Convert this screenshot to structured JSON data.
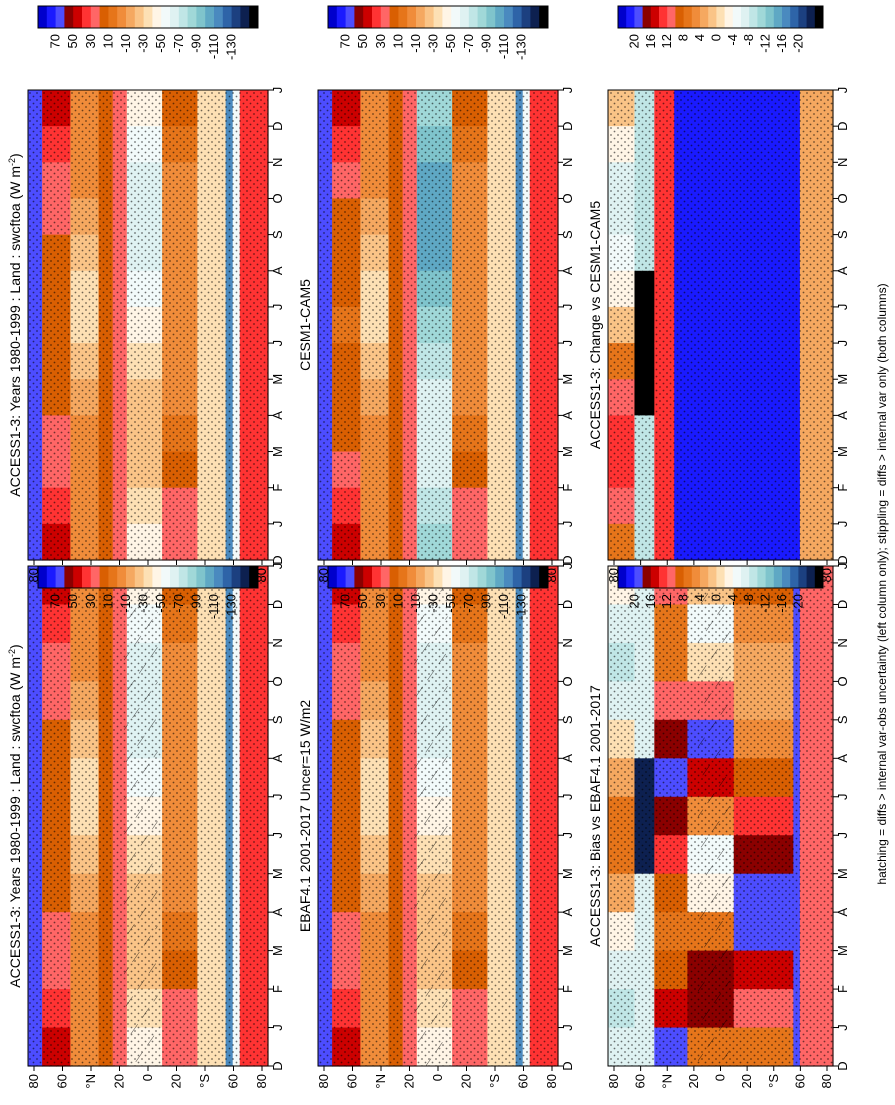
{
  "figure": {
    "footnote": "hatching = diffs > internal var-obs uncertainty (left column only); stippling = diffs > internal var only (both columns)"
  },
  "colorbars": {
    "absolute": {
      "labels": [
        "70",
        "50",
        "30",
        "10",
        "-10",
        "-30",
        "-50",
        "-70",
        "-90",
        "-110",
        "-130"
      ],
      "colors": [
        "#0000cc",
        "#1a1aff",
        "#4d4dff",
        "#8b0000",
        "#cc0000",
        "#ff3333",
        "#ff6666",
        "#d95f02",
        "#e6751a",
        "#f08c3a",
        "#f5a860",
        "#fac487",
        "#fde0b4",
        "#fff5e6",
        "#f2fafa",
        "#dff2f2",
        "#c0e6e6",
        "#a0d8d8",
        "#7fc4cc",
        "#5fa8c4",
        "#4a8abf",
        "#2e64a8",
        "#1c4080",
        "#0d2050",
        "#000000"
      ]
    },
    "difference": {
      "labels": [
        "20",
        "16",
        "12",
        "8",
        "4",
        "0",
        "-4",
        "-8",
        "-12",
        "-16",
        "-20"
      ],
      "colors": [
        "#0000cc",
        "#1a1aff",
        "#4d4dff",
        "#8b0000",
        "#cc0000",
        "#ff3333",
        "#ff6666",
        "#d95f02",
        "#e6751a",
        "#f08c3a",
        "#f5a860",
        "#fac487",
        "#fde0b4",
        "#fff5e6",
        "#f2fafa",
        "#dff2f2",
        "#c0e6e6",
        "#a0d8d8",
        "#7fc4cc",
        "#5fa8c4",
        "#4a8abf",
        "#2e64a8",
        "#1c4080",
        "#0d2050",
        "#000000"
      ]
    }
  },
  "chart_data": [
    {
      "id": "access-historical-left",
      "type": "heatmap",
      "title": "ACCESS1-3: Years 1980-1999 : Land : swcftoa (W m",
      "title_superscript": "-2",
      "title_close": ")",
      "x": [
        "D",
        "J",
        "F",
        "M",
        "A",
        "M",
        "J",
        "J",
        "A",
        "S",
        "O",
        "N",
        "D",
        "J"
      ],
      "y": [
        "80",
        "60",
        "°N",
        "20",
        "0",
        "20",
        "°S",
        "60",
        "80"
      ],
      "colorbar": "absolute",
      "hatching": true,
      "stippling": true,
      "pattern": "absolute-access"
    },
    {
      "id": "access-historical-right",
      "type": "heatmap",
      "title": "ACCESS1-3: Years 1980-1999 : Land : swcftoa (W m",
      "title_superscript": "-2",
      "title_close": ")",
      "x": [
        "D",
        "J",
        "F",
        "M",
        "A",
        "M",
        "J",
        "J",
        "A",
        "S",
        "O",
        "N",
        "D",
        "J"
      ],
      "y": [
        "80",
        "60",
        "°N",
        "20",
        "0",
        "20",
        "°S",
        "60",
        "80"
      ],
      "colorbar": "absolute",
      "hatching": false,
      "stippling": true,
      "pattern": "absolute-access"
    },
    {
      "id": "ebaf-observations",
      "type": "heatmap",
      "title": "EBAF4.1 2001-2017 Uncer=15 W/m2",
      "x": [
        "D",
        "J",
        "F",
        "M",
        "A",
        "M",
        "J",
        "J",
        "A",
        "S",
        "O",
        "N",
        "D",
        "J"
      ],
      "y": [
        "80",
        "60",
        "°N",
        "20",
        "0",
        "20",
        "°S",
        "60",
        "80"
      ],
      "colorbar": "absolute",
      "hatching": true,
      "stippling": true,
      "pattern": "absolute-ebaf"
    },
    {
      "id": "cesm-reference",
      "type": "heatmap",
      "title": "CESM1-CAM5",
      "x": [
        "D",
        "J",
        "F",
        "M",
        "A",
        "M",
        "J",
        "J",
        "A",
        "S",
        "O",
        "N",
        "D",
        "J"
      ],
      "y": [
        "80",
        "60",
        "°N",
        "20",
        "0",
        "20",
        "°S",
        "60",
        "80"
      ],
      "colorbar": "absolute",
      "hatching": false,
      "stippling": true,
      "pattern": "absolute-cesm"
    },
    {
      "id": "access-bias",
      "type": "heatmap",
      "title": "ACCESS1-3: Bias vs EBAF4.1 2001-2017",
      "x": [
        "D",
        "J",
        "F",
        "M",
        "A",
        "M",
        "J",
        "J",
        "A",
        "S",
        "O",
        "N",
        "D",
        "J"
      ],
      "y": [
        "80",
        "60",
        "°N",
        "20",
        "0",
        "20",
        "°S",
        "60",
        "80"
      ],
      "colorbar": "difference",
      "hatching": true,
      "stippling": true,
      "pattern": "diff-bias"
    },
    {
      "id": "access-change",
      "type": "heatmap",
      "title": "ACCESS1-3: Change vs CESM1-CAM5",
      "x": [
        "D",
        "J",
        "F",
        "M",
        "A",
        "M",
        "J",
        "J",
        "A",
        "S",
        "O",
        "N",
        "D",
        "J"
      ],
      "y": [
        "80",
        "60",
        "°N",
        "20",
        "0",
        "20",
        "°S",
        "60",
        "80"
      ],
      "colorbar": "difference",
      "hatching": false,
      "stippling": true,
      "pattern": "diff-change"
    }
  ]
}
